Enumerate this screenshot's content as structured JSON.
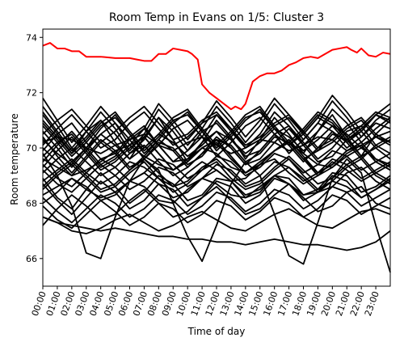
{
  "chart_data": {
    "type": "line",
    "title": "Room Temp in Evans on 1/5: Cluster 3",
    "xlabel": "Time of day",
    "ylabel": "Room temperature",
    "xlim": [
      0,
      24
    ],
    "ylim": [
      65,
      74.3
    ],
    "x_ticks": [
      "00:00",
      "01:00",
      "02:00",
      "03:00",
      "04:00",
      "05:00",
      "06:00",
      "07:00",
      "08:00",
      "09:00",
      "10:00",
      "11:00",
      "12:00",
      "13:00",
      "14:00",
      "15:00",
      "16:00",
      "17:00",
      "18:00",
      "19:00",
      "20:00",
      "21:00",
      "22:00",
      "23:00"
    ],
    "y_ticks": [
      66,
      68,
      70,
      72,
      74
    ],
    "grid": false,
    "legend": "none",
    "highlight_color": "#ff0000",
    "base_color": "#000000",
    "highlight_series": {
      "x": [
        0,
        0.5,
        1,
        1.5,
        2,
        2.5,
        3,
        4,
        5,
        6,
        6.5,
        7,
        7.5,
        8,
        8.5,
        9,
        9.5,
        10,
        10.3,
        10.7,
        11,
        11.5,
        12,
        12.5,
        13,
        13.3,
        13.7,
        14,
        14.5,
        15,
        15.5,
        16,
        16.5,
        17,
        17.5,
        18,
        18.5,
        19,
        19.5,
        20,
        20.5,
        21,
        21.3,
        21.7,
        22,
        22.5,
        23,
        23.5,
        24
      ],
      "values": [
        73.7,
        73.8,
        73.6,
        73.6,
        73.5,
        73.5,
        73.3,
        73.3,
        73.25,
        73.25,
        73.2,
        73.15,
        73.15,
        73.4,
        73.4,
        73.6,
        73.55,
        73.5,
        73.4,
        73.2,
        72.3,
        72.0,
        71.8,
        71.6,
        71.4,
        71.5,
        71.4,
        71.6,
        72.4,
        72.6,
        72.7,
        72.7,
        72.8,
        73.0,
        73.1,
        73.25,
        73.3,
        73.25,
        73.4,
        73.55,
        73.6,
        73.65,
        73.55,
        73.45,
        73.6,
        73.35,
        73.3,
        73.45,
        73.4
      ]
    },
    "series": [
      {
        "values": [
          70.2,
          70.4,
          70.3,
          70.0,
          69.8,
          70.1,
          70.3,
          70.5,
          70.1,
          69.9,
          70.2,
          70.4,
          70.1,
          69.8,
          70.0,
          70.3,
          70.2,
          69.9,
          70.1,
          70.4,
          70.3,
          69.9,
          70.1,
          70.4,
          70.2
        ]
      },
      {
        "values": [
          69.6,
          69.3,
          69.0,
          69.2,
          69.5,
          69.9,
          70.1,
          69.7,
          69.4,
          69.2,
          69.6,
          70.0,
          69.8,
          69.3,
          69.1,
          69.5,
          69.9,
          70.2,
          69.8,
          69.4,
          69.3,
          69.7,
          70.0,
          69.6,
          69.4
        ]
      },
      {
        "values": [
          71.2,
          70.5,
          69.8,
          70.6,
          71.0,
          70.2,
          69.6,
          70.4,
          71.1,
          70.3,
          69.5,
          70.2,
          71.0,
          70.4,
          69.6,
          70.3,
          71.1,
          70.5,
          69.8,
          70.6,
          71.2,
          70.4,
          69.7,
          70.5,
          71.0
        ]
      },
      {
        "values": [
          68.8,
          69.2,
          69.6,
          69.1,
          68.7,
          69.0,
          69.5,
          69.3,
          68.9,
          68.6,
          69.1,
          69.5,
          69.2,
          68.8,
          68.9,
          69.4,
          69.6,
          69.1,
          68.7,
          69.0,
          69.5,
          69.2,
          68.8,
          69.1,
          69.4
        ]
      },
      {
        "values": [
          70.8,
          70.2,
          69.5,
          70.0,
          70.7,
          71.2,
          70.5,
          69.8,
          70.3,
          70.9,
          71.3,
          70.6,
          69.9,
          70.4,
          71.0,
          71.4,
          70.7,
          70.1,
          70.5,
          71.1,
          70.8,
          70.2,
          70.6,
          71.2,
          70.9
        ]
      },
      {
        "values": [
          69.9,
          70.5,
          70.9,
          70.2,
          69.6,
          69.8,
          70.4,
          70.8,
          70.1,
          69.5,
          69.9,
          70.6,
          70.9,
          70.3,
          69.7,
          69.9,
          70.5,
          70.8,
          70.2,
          69.6,
          70.0,
          70.6,
          70.8,
          70.1,
          69.8
        ]
      },
      {
        "values": [
          68.3,
          68.6,
          68.9,
          68.5,
          68.2,
          68.4,
          68.8,
          68.6,
          68.1,
          68.0,
          68.5,
          68.9,
          68.7,
          68.3,
          68.2,
          68.6,
          69.0,
          68.7,
          68.3,
          68.4,
          68.8,
          68.6,
          68.2,
          68.5,
          68.9
        ]
      },
      {
        "values": [
          71.8,
          71.0,
          70.2,
          70.8,
          71.5,
          70.9,
          70.1,
          70.7,
          71.6,
          71.0,
          70.3,
          70.9,
          71.7,
          71.1,
          70.4,
          71.0,
          71.8,
          71.2,
          70.5,
          71.1,
          71.9,
          71.3,
          70.6,
          71.2,
          71.6
        ]
      },
      {
        "values": [
          67.5,
          67.3,
          67.0,
          66.9,
          67.1,
          67.4,
          67.6,
          67.3,
          67.0,
          67.2,
          67.5,
          67.7,
          67.4,
          67.1,
          67.0,
          67.3,
          67.6,
          67.8,
          67.5,
          67.2,
          67.1,
          67.4,
          67.7,
          67.8,
          67.6
        ]
      },
      {
        "values": [
          69.2,
          68.7,
          68.4,
          68.9,
          69.4,
          69.0,
          68.5,
          68.8,
          69.3,
          69.1,
          68.6,
          68.9,
          69.4,
          69.2,
          68.7,
          69.0,
          69.5,
          69.3,
          68.8,
          69.1,
          69.6,
          69.4,
          68.9,
          69.2,
          69.5
        ]
      },
      {
        "values": [
          70.5,
          71.0,
          71.4,
          70.8,
          70.2,
          70.6,
          71.1,
          71.5,
          70.9,
          70.3,
          70.5,
          71.0,
          71.3,
          70.7,
          70.1,
          70.4,
          70.9,
          71.2,
          70.6,
          70.0,
          70.3,
          70.8,
          71.1,
          70.5,
          70.2
        ]
      },
      {
        "values": [
          68.9,
          68.2,
          67.8,
          68.5,
          69.1,
          68.6,
          68.0,
          68.4,
          69.0,
          68.7,
          68.1,
          68.3,
          68.9,
          68.8,
          68.2,
          68.4,
          69.0,
          68.9,
          68.3,
          68.5,
          69.1,
          69.0,
          68.4,
          68.6,
          69.0
        ]
      },
      {
        "values": [
          70.0,
          69.5,
          69.0,
          69.6,
          70.2,
          69.8,
          69.2,
          69.7,
          70.3,
          69.9,
          69.3,
          69.8,
          70.4,
          70.0,
          69.4,
          69.9,
          70.5,
          70.1,
          69.5,
          70.0,
          70.6,
          70.2,
          69.6,
          70.1,
          70.4
        ]
      },
      {
        "values": [
          69.5,
          70.1,
          70.6,
          70.0,
          69.4,
          69.7,
          70.3,
          70.7,
          70.1,
          69.5,
          69.6,
          70.2,
          70.6,
          70.0,
          69.4,
          69.6,
          70.2,
          70.7,
          70.1,
          69.5,
          69.7,
          70.3,
          70.6,
          70.0,
          69.6
        ]
      },
      {
        "values": [
          67.9,
          67.4,
          67.1,
          67.6,
          68.1,
          67.7,
          67.2,
          67.5,
          68.0,
          67.8,
          67.3,
          67.6,
          68.1,
          67.9,
          67.4,
          67.7,
          68.2,
          68.0,
          67.5,
          67.8,
          68.3,
          68.1,
          67.6,
          67.9,
          68.2
        ]
      },
      {
        "values": [
          69.8,
          69.0,
          67.9,
          66.2,
          66.0,
          67.5,
          68.8,
          69.6,
          69.2,
          68.0,
          66.8,
          65.9,
          67.2,
          68.7,
          69.5,
          69.0,
          67.6,
          66.1,
          65.8,
          67.3,
          68.9,
          69.6,
          69.1,
          67.2,
          65.5
        ]
      },
      {
        "values": [
          70.3,
          69.8,
          69.4,
          70.0,
          70.5,
          70.1,
          69.6,
          70.0,
          70.5,
          70.2,
          69.7,
          70.1,
          70.6,
          70.3,
          69.8,
          70.2,
          70.7,
          70.4,
          69.9,
          70.3,
          70.8,
          70.5,
          70.0,
          70.4,
          70.6
        ]
      },
      {
        "values": [
          68.5,
          69.0,
          69.4,
          68.9,
          68.4,
          68.6,
          69.1,
          69.5,
          68.9,
          68.4,
          68.7,
          69.2,
          69.5,
          68.9,
          68.5,
          68.7,
          69.2,
          69.6,
          69.0,
          68.5,
          68.8,
          69.3,
          69.6,
          69.0,
          68.7
        ]
      },
      {
        "values": [
          71.0,
          70.4,
          69.8,
          70.3,
          70.9,
          71.3,
          70.6,
          70.0,
          70.5,
          71.1,
          71.4,
          70.7,
          70.1,
          70.6,
          71.2,
          71.5,
          70.8,
          70.2,
          70.7,
          71.3,
          71.0,
          70.4,
          70.8,
          71.3,
          71.1
        ]
      },
      {
        "values": [
          69.1,
          69.6,
          70.0,
          69.5,
          69.0,
          69.3,
          69.8,
          70.1,
          69.5,
          69.0,
          69.3,
          69.8,
          70.2,
          69.6,
          69.1,
          69.4,
          69.9,
          70.2,
          69.6,
          69.1,
          69.4,
          69.9,
          70.1,
          69.5,
          69.2
        ]
      },
      {
        "values": [
          67.2,
          67.8,
          68.3,
          67.9,
          67.4,
          67.6,
          68.1,
          68.5,
          68.0,
          67.5,
          67.7,
          68.2,
          68.6,
          68.1,
          67.6,
          67.8,
          68.3,
          68.7,
          68.2,
          67.7,
          67.9,
          68.4,
          68.6,
          68.0,
          67.8
        ]
      },
      {
        "values": [
          70.6,
          70.0,
          69.3,
          69.9,
          70.5,
          70.9,
          70.3,
          69.6,
          70.1,
          70.7,
          71.0,
          70.4,
          69.7,
          70.2,
          70.8,
          71.1,
          70.5,
          69.8,
          70.3,
          70.9,
          70.6,
          70.0,
          70.4,
          70.9,
          70.7
        ]
      },
      {
        "values": [
          68.0,
          68.4,
          68.9,
          68.6,
          68.1,
          68.3,
          68.8,
          69.1,
          68.7,
          68.2,
          68.4,
          68.9,
          69.2,
          68.8,
          68.3,
          68.5,
          69.0,
          69.3,
          68.9,
          68.4,
          68.6,
          69.1,
          69.3,
          68.8,
          68.5
        ]
      },
      {
        "values": [
          69.4,
          68.9,
          68.6,
          69.1,
          69.6,
          69.3,
          68.8,
          69.1,
          69.6,
          69.4,
          68.9,
          69.2,
          69.7,
          69.5,
          69.0,
          69.3,
          69.8,
          69.6,
          69.1,
          69.4,
          69.9,
          69.7,
          69.2,
          69.5,
          69.8
        ]
      },
      {
        "values": [
          71.5,
          70.8,
          70.0,
          70.6,
          71.3,
          70.7,
          69.9,
          70.5,
          71.4,
          70.8,
          70.1,
          70.7,
          71.5,
          70.9,
          70.2,
          70.8,
          71.6,
          71.0,
          70.3,
          70.9,
          71.7,
          71.1,
          70.4,
          71.0,
          71.4
        ]
      },
      {
        "values": [
          67.5,
          67.3,
          67.2,
          67.1,
          67.0,
          67.1,
          67.0,
          66.9,
          66.8,
          66.8,
          66.7,
          66.7,
          66.6,
          66.6,
          66.5,
          66.6,
          66.7,
          66.6,
          66.5,
          66.5,
          66.4,
          66.3,
          66.4,
          66.6,
          67.0
        ]
      },
      {
        "values": [
          70.1,
          70.7,
          71.2,
          70.6,
          70.0,
          70.3,
          70.9,
          71.3,
          70.7,
          70.1,
          70.4,
          70.9,
          71.2,
          70.6,
          70.0,
          70.3,
          70.8,
          71.1,
          70.5,
          69.9,
          70.2,
          70.7,
          71.0,
          70.4,
          70.1
        ]
      },
      {
        "values": [
          68.7,
          68.1,
          67.6,
          68.2,
          68.8,
          68.4,
          67.8,
          68.1,
          68.7,
          68.5,
          67.9,
          68.2,
          68.8,
          68.6,
          68.0,
          68.3,
          68.9,
          68.7,
          68.1,
          68.4,
          69.0,
          68.8,
          68.2,
          68.5,
          68.8
        ]
      },
      {
        "values": [
          69.7,
          70.2,
          70.5,
          69.9,
          69.3,
          69.6,
          70.1,
          70.4,
          69.8,
          69.2,
          69.5,
          70.0,
          70.3,
          69.7,
          69.1,
          69.4,
          69.9,
          70.2,
          69.6,
          69.0,
          69.3,
          69.8,
          70.1,
          69.5,
          69.2
        ]
      },
      {
        "values": [
          70.9,
          70.3,
          69.7,
          70.2,
          70.8,
          71.1,
          70.5,
          69.9,
          70.4,
          71.0,
          71.2,
          70.6,
          70.0,
          70.5,
          71.1,
          71.3,
          70.7,
          70.1,
          70.6,
          71.2,
          70.9,
          70.3,
          70.7,
          71.2,
          71.0
        ]
      },
      {
        "values": [
          68.2,
          67.7,
          67.3,
          67.8,
          68.3,
          68.0,
          67.5,
          67.8,
          68.3,
          68.1,
          67.6,
          67.9,
          68.4,
          68.2,
          67.7,
          68.0,
          68.5,
          68.3,
          67.8,
          68.1,
          68.6,
          68.4,
          67.9,
          68.2,
          68.5
        ]
      },
      {
        "values": [
          69.3,
          69.9,
          70.4,
          69.8,
          69.2,
          69.5,
          70.0,
          70.4,
          69.8,
          69.2,
          69.5,
          70.0,
          70.3,
          69.7,
          69.1,
          69.4,
          69.9,
          70.3,
          69.7,
          69.1,
          69.4,
          69.9,
          70.2,
          69.6,
          69.3
        ]
      },
      {
        "values": [
          70.4,
          69.7,
          69.1,
          69.7,
          70.3,
          69.9,
          69.3,
          69.6,
          70.2,
          70.0,
          69.4,
          69.7,
          70.3,
          70.1,
          69.5,
          69.8,
          70.4,
          70.2,
          69.6,
          69.9,
          70.5,
          70.3,
          69.7,
          70.0,
          70.3
        ]
      },
      {
        "values": [
          71.3,
          70.6,
          69.9,
          70.4,
          71.0,
          70.5,
          69.8,
          70.3,
          71.1,
          70.6,
          69.9,
          70.4,
          71.2,
          70.7,
          70.0,
          70.5,
          71.3,
          70.8,
          70.1,
          70.6,
          71.4,
          70.9,
          70.2,
          70.7,
          71.1
        ]
      },
      {
        "values": [
          68.6,
          69.1,
          69.5,
          69.0,
          68.5,
          68.7,
          69.2,
          69.6,
          69.1,
          68.6,
          68.8,
          69.3,
          69.6,
          69.1,
          68.6,
          68.8,
          69.3,
          69.7,
          69.2,
          68.7,
          68.9,
          69.4,
          69.7,
          69.1,
          68.8
        ]
      }
    ]
  }
}
